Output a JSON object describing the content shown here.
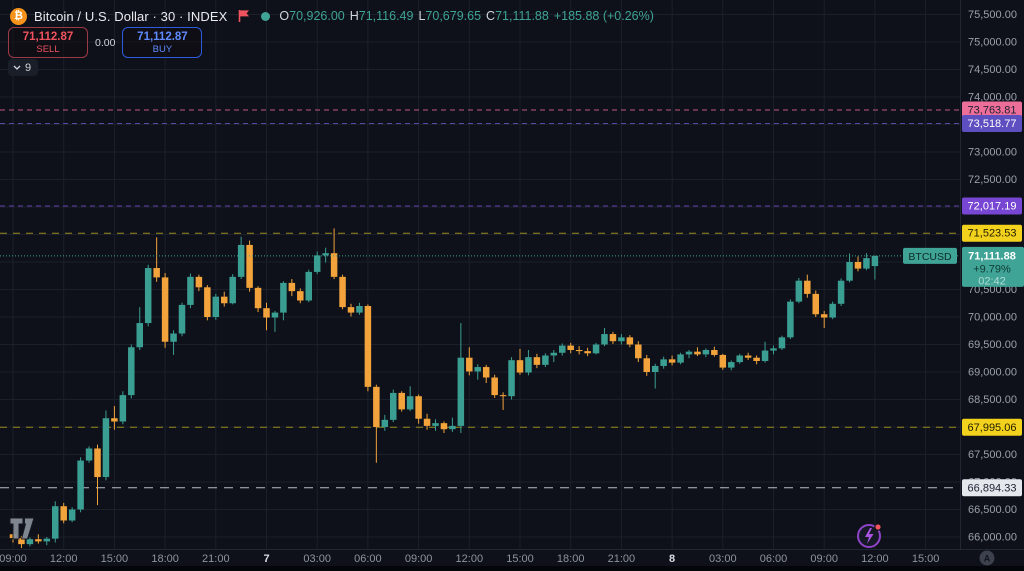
{
  "header": {
    "symbol_title": "Bitcoin / U.S. Dollar · 30 · INDEX",
    "ohlc": {
      "o_label": "O",
      "o": "70,926.00",
      "h_label": "H",
      "h": "71,116.49",
      "l_label": "L",
      "l": "70,679.65",
      "c_label": "C",
      "c": "71,111.88",
      "change": "+185.88 (+0.26%)"
    },
    "sell": {
      "price": "71,112.87",
      "label": "SELL"
    },
    "spread": "0.00",
    "buy": {
      "price": "71,112.87",
      "label": "BUY"
    },
    "drawings_count": "9"
  },
  "colors": {
    "background": "#0e1119",
    "grid": "#1b202b",
    "axis_text": "#9aa0ac",
    "up": "#3b9e92",
    "down": "#f2a33c",
    "accent_red": "#f0525f",
    "accent_blue": "#2e5bdc"
  },
  "price_axis": {
    "labels": [
      "75,500.00",
      "75,000.00",
      "74,500.00",
      "74,000.00",
      "73,500.00",
      "73,000.00",
      "72,500.00",
      "72,000.00",
      "71,500.00",
      "71,000.00",
      "70,500.00",
      "70,000.00",
      "69,500.00",
      "69,000.00",
      "68,500.00",
      "68,000.00",
      "67,500.00",
      "67,000.00",
      "66,500.00",
      "66,000.00"
    ],
    "top_value": 75500,
    "step": 500
  },
  "time_axis": {
    "labels": [
      {
        "label": "09:00",
        "slot": 0
      },
      {
        "label": "12:00",
        "slot": 6
      },
      {
        "label": "15:00",
        "slot": 12
      },
      {
        "label": "18:00",
        "slot": 18
      },
      {
        "label": "21:00",
        "slot": 24
      },
      {
        "label": "7",
        "slot": 30,
        "major": true
      },
      {
        "label": "03:00",
        "slot": 36
      },
      {
        "label": "06:00",
        "slot": 42
      },
      {
        "label": "09:00",
        "slot": 48
      },
      {
        "label": "12:00",
        "slot": 54
      },
      {
        "label": "15:00",
        "slot": 60
      },
      {
        "label": "18:00",
        "slot": 66
      },
      {
        "label": "21:00",
        "slot": 72
      },
      {
        "label": "8",
        "slot": 78,
        "major": true
      },
      {
        "label": "03:00",
        "slot": 84
      },
      {
        "label": "06:00",
        "slot": 90
      },
      {
        "label": "09:00",
        "slot": 96
      },
      {
        "label": "12:00",
        "slot": 102
      },
      {
        "label": "15:00",
        "slot": 108
      }
    ]
  },
  "levels": [
    {
      "label": "73,763.81",
      "value": 73763.81,
      "badge": "#ee6e9a",
      "text": "#1c2030",
      "line": "#c05c80",
      "dash": "5 4"
    },
    {
      "label": "73,518.77",
      "value": 73518.77,
      "badge": "#5d4fc0",
      "text": "#ffffff",
      "line": "#544aa0",
      "dash": "5 4"
    },
    {
      "label": "72,017.19",
      "value": 72017.19,
      "badge": "#7747d4",
      "text": "#ffffff",
      "line": "#6540ad",
      "dash": "5 4"
    },
    {
      "label": "71,523.53",
      "value": 71523.53,
      "badge": "#f2d21c",
      "text": "#231d03",
      "line": "#9c8a1f",
      "dash": "7 6"
    },
    {
      "label": "67,995.06",
      "value": 67995.06,
      "badge": "#f2d21c",
      "text": "#231d03",
      "line": "#9c8a1f",
      "dash": "7 6"
    },
    {
      "label": "66,894.33",
      "value": 66894.33,
      "badge": "#e4e7ec",
      "text": "#1c2030",
      "line": "#b9bdc6",
      "dash": "9 7"
    }
  ],
  "current": {
    "symbol": "BTCUSD",
    "price": "71,111.88",
    "pct": "+9.79%",
    "countdown": "02:42",
    "value": 71111.88,
    "color": "#3fa396"
  },
  "watermark": "TV",
  "corner_button": "A",
  "chart_data": {
    "type": "candlestick",
    "symbol": "BTCUSD",
    "interval_minutes": 30,
    "up_color": "#3b9e92",
    "down_color": "#f2a33c",
    "price_range_visible": [
      66000,
      75500
    ],
    "candles": [
      [
        66050,
        66120,
        65900,
        65980
      ],
      [
        65980,
        66020,
        65800,
        65870
      ],
      [
        65870,
        65990,
        65830,
        65960
      ],
      [
        65960,
        66050,
        65880,
        65920
      ],
      [
        65920,
        66000,
        65850,
        65970
      ],
      [
        65970,
        66650,
        65900,
        66560
      ],
      [
        66560,
        66620,
        66250,
        66300
      ],
      [
        66300,
        66540,
        66270,
        66500
      ],
      [
        66500,
        67450,
        66450,
        67390
      ],
      [
        67390,
        67650,
        67350,
        67610
      ],
      [
        67610,
        67680,
        66580,
        67090
      ],
      [
        67090,
        68300,
        67030,
        68160
      ],
      [
        68160,
        68380,
        67950,
        68100
      ],
      [
        68100,
        68650,
        68050,
        68580
      ],
      [
        68580,
        69500,
        68520,
        69450
      ],
      [
        69450,
        70180,
        69400,
        69890
      ],
      [
        69890,
        70950,
        69830,
        70890
      ],
      [
        70890,
        71450,
        70640,
        70720
      ],
      [
        70720,
        70800,
        69440,
        69550
      ],
      [
        69550,
        69760,
        69310,
        69700
      ],
      [
        69700,
        70260,
        69650,
        70220
      ],
      [
        70220,
        70790,
        70160,
        70730
      ],
      [
        70730,
        70770,
        70470,
        70540
      ],
      [
        70540,
        70580,
        69940,
        70000
      ],
      [
        70000,
        70420,
        69950,
        70370
      ],
      [
        70370,
        70460,
        70190,
        70250
      ],
      [
        70250,
        70780,
        70230,
        70730
      ],
      [
        70730,
        71460,
        70690,
        71310
      ],
      [
        71310,
        71390,
        70460,
        70530
      ],
      [
        70530,
        70560,
        70090,
        70160
      ],
      [
        70160,
        70260,
        69760,
        69990
      ],
      [
        69990,
        70110,
        69730,
        70080
      ],
      [
        70080,
        70650,
        69940,
        70620
      ],
      [
        70620,
        70690,
        70380,
        70470
      ],
      [
        70470,
        70520,
        70250,
        70300
      ],
      [
        70300,
        70860,
        70270,
        70820
      ],
      [
        70820,
        71190,
        70780,
        71120
      ],
      [
        71120,
        71260,
        70990,
        71160
      ],
      [
        71160,
        71610,
        70690,
        70730
      ],
      [
        70730,
        70770,
        70140,
        70180
      ],
      [
        70180,
        70240,
        70010,
        70080
      ],
      [
        70080,
        70260,
        70040,
        70200
      ],
      [
        70200,
        70230,
        68650,
        68730
      ],
      [
        68730,
        68770,
        67350,
        68000
      ],
      [
        68000,
        68220,
        67930,
        68130
      ],
      [
        68130,
        68680,
        68090,
        68620
      ],
      [
        68620,
        68650,
        68280,
        68320
      ],
      [
        68320,
        68740,
        68290,
        68560
      ],
      [
        68560,
        68590,
        68060,
        68150
      ],
      [
        68150,
        68240,
        67950,
        68020
      ],
      [
        68020,
        68140,
        67930,
        68070
      ],
      [
        68070,
        68100,
        67890,
        67960
      ],
      [
        67960,
        68170,
        67910,
        68020
      ],
      [
        68020,
        69890,
        67890,
        69260
      ],
      [
        69260,
        69450,
        68940,
        69010
      ],
      [
        69010,
        69140,
        68860,
        69090
      ],
      [
        69090,
        69130,
        68800,
        68900
      ],
      [
        68900,
        68950,
        68530,
        68580
      ],
      [
        68580,
        68630,
        68310,
        68560
      ],
      [
        68560,
        69270,
        68500,
        69215
      ],
      [
        69215,
        69420,
        68950,
        68990
      ],
      [
        68990,
        69400,
        68940,
        69270
      ],
      [
        69270,
        69330,
        69070,
        69130
      ],
      [
        69130,
        69340,
        69090,
        69300
      ],
      [
        69300,
        69400,
        69180,
        69350
      ],
      [
        69350,
        69520,
        69300,
        69480
      ],
      [
        69480,
        69530,
        69340,
        69400
      ],
      [
        69400,
        69470,
        69320,
        69380
      ],
      [
        69380,
        69440,
        69290,
        69340
      ],
      [
        69340,
        69530,
        69320,
        69500
      ],
      [
        69500,
        69800,
        69470,
        69690
      ],
      [
        69690,
        69730,
        69510,
        69560
      ],
      [
        69560,
        69690,
        69500,
        69630
      ],
      [
        69630,
        69670,
        69450,
        69500
      ],
      [
        69500,
        69560,
        69180,
        69250
      ],
      [
        69250,
        69310,
        68930,
        69000
      ],
      [
        69000,
        69150,
        68700,
        69110
      ],
      [
        69110,
        69280,
        69060,
        69230
      ],
      [
        69230,
        69300,
        69120,
        69170
      ],
      [
        69170,
        69350,
        69140,
        69320
      ],
      [
        69320,
        69400,
        69250,
        69370
      ],
      [
        69370,
        69450,
        69290,
        69320
      ],
      [
        69320,
        69430,
        69270,
        69400
      ],
      [
        69400,
        69460,
        69280,
        69310
      ],
      [
        69310,
        69330,
        69040,
        69080
      ],
      [
        69080,
        69210,
        69030,
        69180
      ],
      [
        69180,
        69330,
        69150,
        69300
      ],
      [
        69300,
        69350,
        69220,
        69260
      ],
      [
        69260,
        69300,
        69140,
        69200
      ],
      [
        69200,
        69550,
        69170,
        69390
      ],
      [
        69390,
        69480,
        69320,
        69430
      ],
      [
        69430,
        69660,
        69400,
        69630
      ],
      [
        69630,
        70320,
        69600,
        70280
      ],
      [
        70280,
        70710,
        70250,
        70660
      ],
      [
        70660,
        70770,
        70350,
        70420
      ],
      [
        70420,
        70480,
        70000,
        70050
      ],
      [
        70050,
        70110,
        69800,
        69990
      ],
      [
        69990,
        70280,
        69960,
        70240
      ],
      [
        70240,
        70700,
        70200,
        70660
      ],
      [
        70660,
        71155,
        70630,
        71000
      ],
      [
        71000,
        71100,
        70830,
        70880
      ],
      [
        70880,
        71160,
        70850,
        71070
      ],
      [
        70926,
        71116.49,
        70679.65,
        71111.88
      ]
    ]
  }
}
